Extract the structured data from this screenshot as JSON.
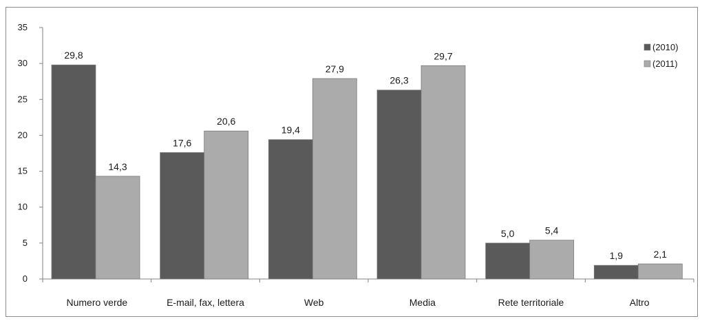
{
  "chart_data": {
    "type": "bar",
    "categories": [
      "Numero verde",
      "E-mail, fax, lettera",
      "Web",
      "Media",
      "Rete territoriale",
      "Altro"
    ],
    "series": [
      {
        "name": "(2010)",
        "color": "#5a5a5a",
        "values": [
          29.8,
          17.6,
          19.4,
          26.3,
          5.0,
          1.9
        ],
        "labels": [
          "29,8",
          "17,6",
          "19,4",
          "26,3",
          "5,0",
          "1,9"
        ]
      },
      {
        "name": "(2011)",
        "color": "#ababab",
        "values": [
          14.3,
          20.6,
          27.9,
          29.7,
          5.4,
          2.1
        ],
        "labels": [
          "14,3",
          "20,6",
          "27,9",
          "29,7",
          "5,4",
          "2,1"
        ]
      }
    ],
    "yticks": [
      0,
      5,
      10,
      15,
      20,
      25,
      30,
      35
    ],
    "ylim": [
      0,
      35
    ],
    "legend_position": "top-right",
    "grid": false
  }
}
